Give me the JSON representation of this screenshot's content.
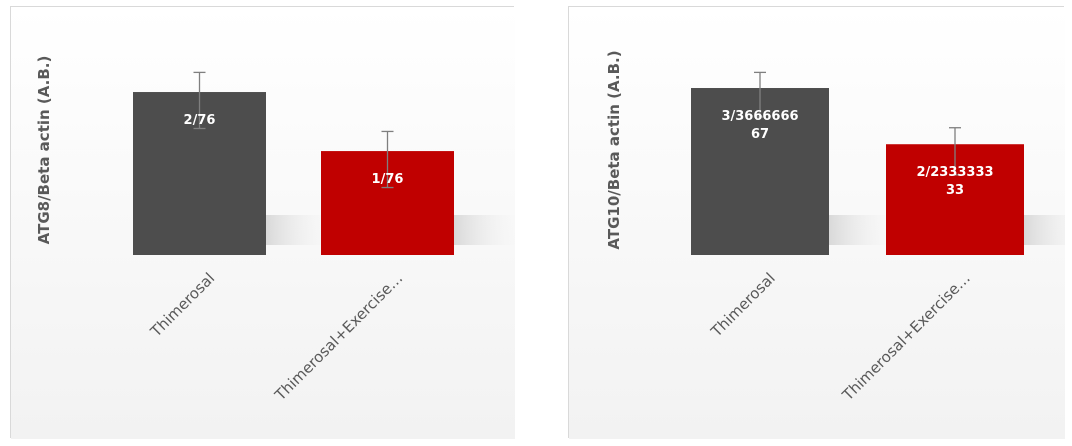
{
  "chart_data": [
    {
      "type": "bar",
      "ylabel": "ATG8/Beta actin (A.B.)",
      "categories": [
        "Thimerosal",
        "Thimerosal+Exercise…"
      ],
      "values": [
        2.76,
        1.76
      ],
      "errors": [
        0.95,
        0.95
      ],
      "data_labels": [
        [
          "2/76"
        ],
        [
          "1/76"
        ]
      ],
      "colors": [
        "#4d4d4d",
        "#c00000"
      ],
      "ylim": [
        0,
        4.2
      ]
    },
    {
      "type": "bar",
      "ylabel": "ATG10/Beta actin (A.B.)",
      "categories": [
        "Thimerosal",
        "Thimerosal+Exercise…"
      ],
      "values": [
        3.3666666667,
        2.2333333333
      ],
      "errors": [
        0.9,
        0.95
      ],
      "data_labels": [
        [
          "3/3666666",
          "67"
        ],
        [
          "2/2333333",
          "33"
        ]
      ],
      "colors": [
        "#4d4d4d",
        "#c00000"
      ],
      "ylim": [
        0,
        5
      ]
    }
  ]
}
